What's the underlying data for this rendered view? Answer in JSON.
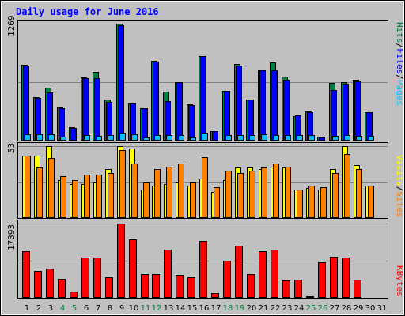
{
  "title": "Daily usage for June 2016",
  "colors": {
    "background": "#C0C0C0",
    "title": "#0000FF",
    "hits": "#008040",
    "files": "#0000FF",
    "pages": "#00C0FF",
    "visits": "#FFFF00",
    "sites": "#FF8000",
    "kbytes": "#FF0000",
    "weekend_label": "#008040",
    "weekday_label": "#000000",
    "gridline": "#808080"
  },
  "labels": {
    "hits": "Hits",
    "files": "Files",
    "pages": "Pages",
    "visits": "Visits",
    "sites": "Sites",
    "kbytes": "KBytes",
    "separator": "/"
  },
  "chart_data": [
    {
      "type": "bar",
      "panel": "hits-files-pages",
      "title": "Daily usage for June 2016",
      "categories": [
        "1",
        "2",
        "3",
        "4",
        "5",
        "6",
        "7",
        "8",
        "9",
        "10",
        "11",
        "12",
        "13",
        "14",
        "15",
        "16",
        "17",
        "18",
        "19",
        "20",
        "21",
        "22",
        "23",
        "24",
        "25",
        "26",
        "27",
        "28",
        "29",
        "30",
        "31"
      ],
      "weekend_days": [
        "4",
        "5",
        "11",
        "12",
        "18",
        "19",
        "25",
        "26"
      ],
      "ylim": [
        0,
        1269
      ],
      "y_tick_label": "1269",
      "series": [
        {
          "name": "Hits",
          "values": [
            827,
            474,
            576,
            363,
            147,
            690,
            742,
            448,
            1269,
            407,
            355,
            865,
            535,
            635,
            394,
            915,
            103,
            542,
            828,
            450,
            775,
            847,
            693,
            270,
            315,
            40,
            622,
            635,
            660,
            309,
            0
          ]
        },
        {
          "name": "Files",
          "values": [
            814,
            465,
            519,
            351,
            134,
            676,
            679,
            423,
            1250,
            405,
            350,
            855,
            430,
            637,
            388,
            920,
            101,
            539,
            818,
            447,
            765,
            764,
            662,
            271,
            311,
            33,
            553,
            620,
            640,
            307,
            0
          ]
        },
        {
          "name": "Pages",
          "values": [
            71,
            68,
            71,
            43,
            11,
            61,
            55,
            61,
            87,
            67,
            35,
            62,
            56,
            62,
            38,
            86,
            11,
            60,
            58,
            57,
            65,
            63,
            57,
            62,
            60,
            8,
            53,
            61,
            53,
            53,
            0
          ]
        }
      ]
    },
    {
      "type": "bar",
      "panel": "visits-sites",
      "categories": [
        "1",
        "2",
        "3",
        "4",
        "5",
        "6",
        "7",
        "8",
        "9",
        "10",
        "11",
        "12",
        "13",
        "14",
        "15",
        "16",
        "17",
        "18",
        "19",
        "20",
        "21",
        "22",
        "23",
        "24",
        "25",
        "26",
        "27",
        "28",
        "29",
        "30",
        "31"
      ],
      "ylim": [
        0,
        53
      ],
      "y_tick_label": "53",
      "series": [
        {
          "name": "Visits",
          "values": [
            46,
            46,
            53,
            28,
            25,
            25,
            26,
            36,
            53,
            51,
            21,
            24,
            25,
            26,
            24,
            29,
            19,
            28,
            37,
            37,
            36,
            38,
            37,
            21,
            22,
            21,
            36,
            53,
            39,
            24,
            0
          ]
        },
        {
          "name": "Sites",
          "values": [
            46,
            37,
            44,
            31,
            28,
            32,
            32,
            33,
            50,
            40,
            26,
            36,
            38,
            40,
            26,
            45,
            23,
            35,
            33,
            35,
            37,
            40,
            38,
            21,
            24,
            23,
            33,
            47,
            36,
            24,
            0
          ]
        }
      ]
    },
    {
      "type": "bar",
      "panel": "kbytes",
      "categories": [
        "1",
        "2",
        "3",
        "4",
        "5",
        "6",
        "7",
        "8",
        "9",
        "10",
        "11",
        "12",
        "13",
        "14",
        "15",
        "16",
        "17",
        "18",
        "19",
        "20",
        "21",
        "22",
        "23",
        "24",
        "25",
        "26",
        "27",
        "28",
        "29",
        "30",
        "31"
      ],
      "ylim": [
        0,
        17393
      ],
      "y_tick_label": "17393",
      "series": [
        {
          "name": "KBytes",
          "values": [
            10966,
            6323,
            6885,
            4356,
            1405,
            9420,
            9414,
            4848,
            17393,
            13648,
            5473,
            5479,
            11248,
            5400,
            4760,
            13288,
            1090,
            8631,
            12282,
            5616,
            10958,
            11245,
            3981,
            4262,
            440,
            8284,
            9706,
            9420,
            4219,
            0,
            0
          ]
        }
      ]
    }
  ]
}
